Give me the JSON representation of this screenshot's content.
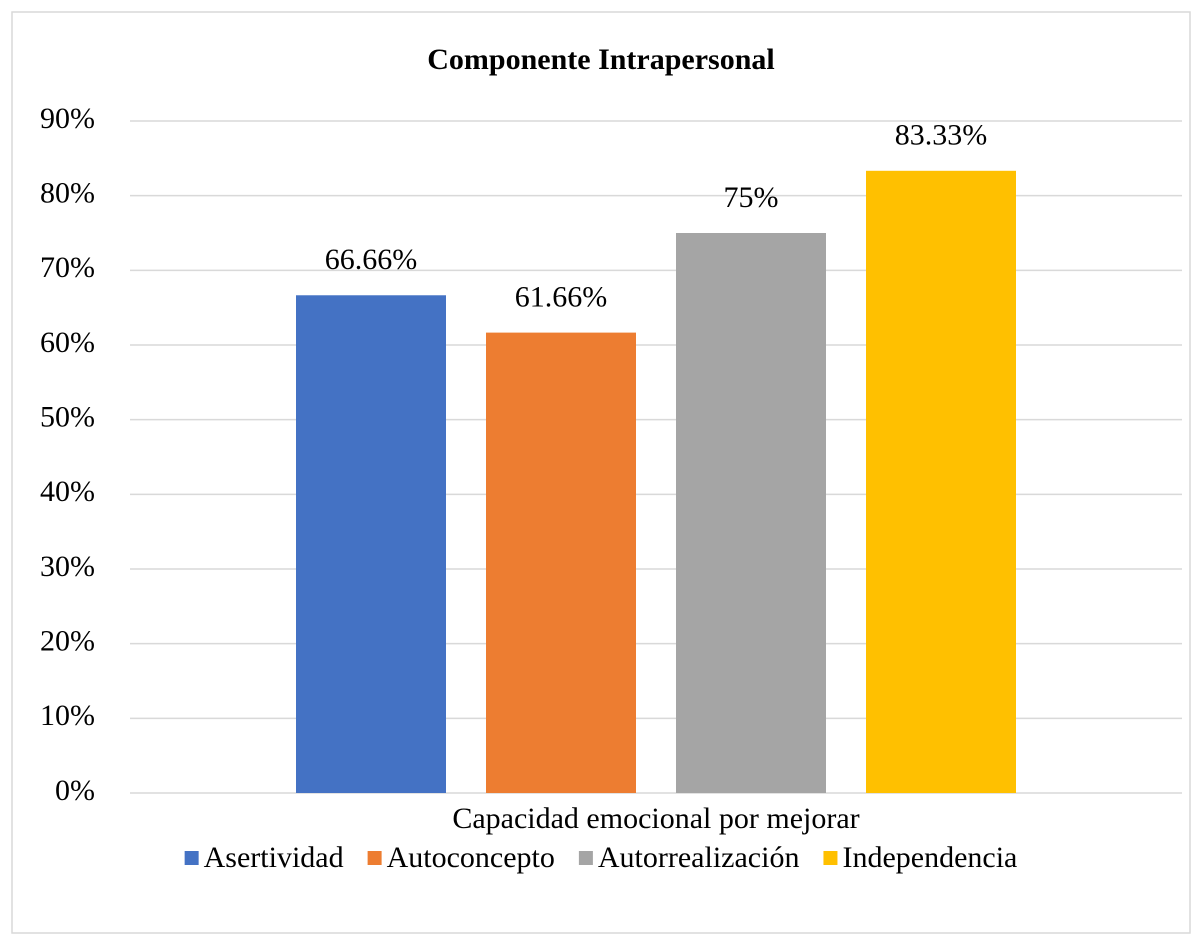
{
  "chart_data": {
    "type": "bar",
    "title": "Componente  Intrapersonal",
    "categories": [
      "Capacidad emocional  por mejorar"
    ],
    "series": [
      {
        "name": "Asertividad",
        "color": "#4472c4",
        "values": [
          66.66
        ],
        "value_labels": [
          "66.66%"
        ]
      },
      {
        "name": "Autoconcepto",
        "color": "#ed7d31",
        "values": [
          61.66
        ],
        "value_labels": [
          "61.66%"
        ]
      },
      {
        "name": "Autorrealización",
        "color": "#a5a5a5",
        "values": [
          75
        ],
        "value_labels": [
          "75%"
        ]
      },
      {
        "name": "Independencia",
        "color": "#ffc000",
        "values": [
          83.33
        ],
        "value_labels": [
          "83.33%"
        ]
      }
    ],
    "ylim": [
      0,
      90
    ],
    "yticks": [
      {
        "value": 0,
        "label": "0%"
      },
      {
        "value": 10,
        "label": "10%"
      },
      {
        "value": 20,
        "label": "20%"
      },
      {
        "value": 30,
        "label": "30%"
      },
      {
        "value": 40,
        "label": "40%"
      },
      {
        "value": 50,
        "label": "50%"
      },
      {
        "value": 60,
        "label": "60%"
      },
      {
        "value": 70,
        "label": "70%"
      },
      {
        "value": 80,
        "label": "80%"
      },
      {
        "value": 90,
        "label": "90%"
      }
    ],
    "grid": true,
    "legend": "bottom"
  }
}
